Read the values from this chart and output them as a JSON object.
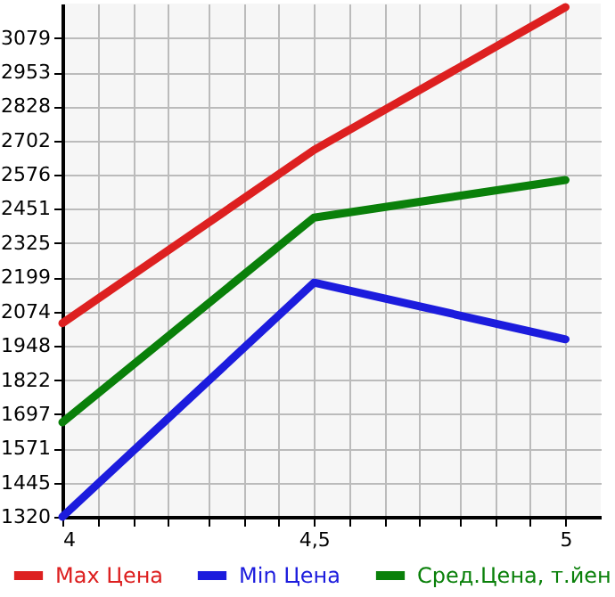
{
  "chart_data": {
    "type": "line",
    "x": [
      4,
      4.5,
      5
    ],
    "series": [
      {
        "name": "Max Цена",
        "color": "#dd2020",
        "values": [
          2031,
          2667,
          3192
        ]
      },
      {
        "name": "Min Цена",
        "color": "#1c1cdd",
        "values": [
          1320,
          2180,
          1972
        ]
      },
      {
        "name": "Сред.Цена, т.йен",
        "color": "#0a800a",
        "values": [
          1667,
          2419,
          2557
        ]
      }
    ],
    "xlim": [
      4,
      5.07
    ],
    "xticks": [
      4,
      {
        "value": 4.07,
        "label": null
      },
      {
        "value": 4.14,
        "label": null
      },
      {
        "value": 4.21,
        "label": null
      },
      {
        "value": 4.29,
        "label": null
      },
      {
        "value": 4.36,
        "label": null
      },
      {
        "value": 4.43,
        "label": null
      },
      {
        "value": 4.5,
        "label": "4,5"
      },
      {
        "value": 4.57,
        "label": null
      },
      {
        "value": 4.64,
        "label": null
      },
      {
        "value": 4.71,
        "label": null
      },
      {
        "value": 4.79,
        "label": null
      },
      {
        "value": 4.86,
        "label": null
      },
      {
        "value": 4.93,
        "label": null
      },
      5
    ],
    "ylim": [
      1320,
      3205
    ],
    "yticks": [
      1320,
      1445,
      1571,
      1697,
      1822,
      1948,
      2074,
      2199,
      2325,
      2451,
      2576,
      2702,
      2828,
      2953,
      3079
    ],
    "grid": true,
    "legend": "bottom",
    "marker": "none",
    "line_style": "solid"
  }
}
